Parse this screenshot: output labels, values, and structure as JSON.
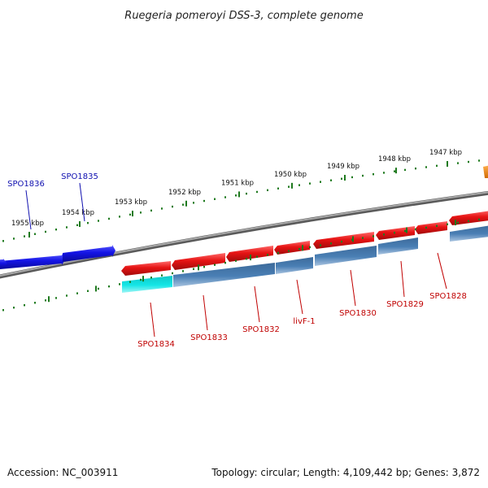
{
  "title": "Ruegeria pomeroyi DSS-3, complete genome",
  "footer": {
    "accession": "Accession: NC_003911",
    "topology": "Topology: circular; Length: 4,109,442 bp; Genes: 3,872"
  },
  "scale_ticks": [
    {
      "kbp": 1955,
      "label": "1955 kbp"
    },
    {
      "kbp": 1954,
      "label": "1954 kbp"
    },
    {
      "kbp": 1953,
      "label": "1953 kbp"
    },
    {
      "kbp": 1952,
      "label": "1952 kbp"
    },
    {
      "kbp": 1951,
      "label": "1951 kbp"
    },
    {
      "kbp": 1950,
      "label": "1950 kbp"
    },
    {
      "kbp": 1949,
      "label": "1949 kbp"
    },
    {
      "kbp": 1948,
      "label": "1948 kbp"
    },
    {
      "kbp": 1947,
      "label": "1947 kbp"
    }
  ],
  "forward_genes_labeled": [
    {
      "label": "SPO1836"
    },
    {
      "label": "SPO1835"
    }
  ],
  "reverse_genes_labeled": [
    {
      "label": "SPO1834"
    },
    {
      "label": "SPO1833"
    },
    {
      "label": "SPO1832"
    },
    {
      "label": "livF-1"
    },
    {
      "label": "SPO1830"
    },
    {
      "label": "SPO1829"
    },
    {
      "label": "SPO1828"
    }
  ],
  "colors": {
    "forward_gene": "#1414e6",
    "reverse_gene": "#e61414",
    "cds_steelblue": "#4a7fb5",
    "cds_cyan": "#14e6e6",
    "other_feature": "#f08c14",
    "backbone": "#808080",
    "tick": "#1f7a1f",
    "label_forward": "#1010b0",
    "label_reverse": "#c00000"
  }
}
